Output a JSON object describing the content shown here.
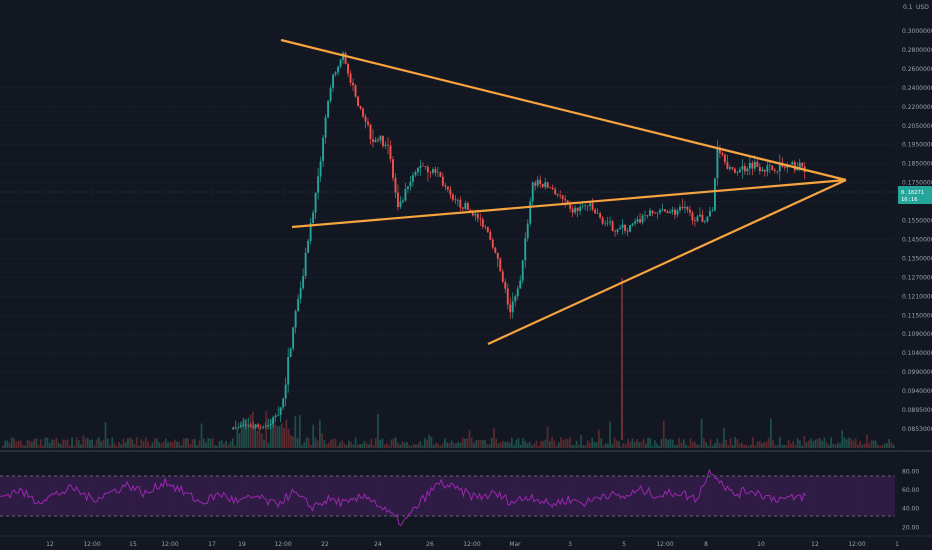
{
  "chart_data": {
    "type": "candlestick",
    "currency_label": "USD",
    "price_axis": {
      "top_label": "0.1",
      "ticks": [
        "0.30000000",
        "0.28000000",
        "0.26000000",
        "0.24000000",
        "0.22000000",
        "0.20500000",
        "0.19500000",
        "0.18500000",
        "0.17500000",
        "0.16500000",
        "0.15500000",
        "0.14500000",
        "0.13500000",
        "0.12700000",
        "0.12100000",
        "0.11500000",
        "0.10900000",
        "0.10400000",
        "0.09900000",
        "0.09400000",
        "0.08950000",
        "0.08530000"
      ],
      "current_price": "0.18271",
      "countdown": "16:16"
    },
    "rsi_axis": {
      "ticks": [
        "80.00",
        "60.00",
        "40.00",
        "20.00"
      ],
      "upper_band": 70,
      "lower_band": 30
    },
    "time_axis": [
      "12",
      "12:00",
      "15",
      "12:00",
      "17",
      "19",
      "12:00",
      "22",
      "24",
      "26",
      "12:00",
      "Mar",
      "3",
      "5",
      "12:00",
      "8",
      "10",
      "12",
      "12:00",
      "1"
    ],
    "price_range": [
      0.0835,
      0.312
    ],
    "rsi_range": [
      15,
      90
    ],
    "candle_count": 300,
    "path": [
      [
        0,
        0.0852
      ],
      [
        14,
        0.0852
      ],
      [
        20,
        0.092
      ],
      [
        28,
        0.13
      ],
      [
        34,
        0.175
      ],
      [
        40,
        0.25
      ],
      [
        44,
        0.275
      ],
      [
        49,
        0.23
      ],
      [
        55,
        0.2
      ],
      [
        62,
        0.195
      ],
      [
        66,
        0.16
      ],
      [
        70,
        0.172
      ],
      [
        75,
        0.185
      ],
      [
        82,
        0.18
      ],
      [
        88,
        0.165
      ],
      [
        95,
        0.16
      ],
      [
        102,
        0.15
      ],
      [
        108,
        0.125
      ],
      [
        111,
        0.116
      ],
      [
        115,
        0.125
      ],
      [
        120,
        0.175
      ],
      [
        128,
        0.172
      ],
      [
        135,
        0.16
      ],
      [
        142,
        0.163
      ],
      [
        150,
        0.152
      ],
      [
        158,
        0.15
      ],
      [
        165,
        0.158
      ],
      [
        172,
        0.16
      ],
      [
        180,
        0.16
      ],
      [
        188,
        0.155
      ],
      [
        192,
        0.16
      ],
      [
        194,
        0.195
      ],
      [
        200,
        0.18
      ],
      [
        208,
        0.185
      ],
      [
        215,
        0.182
      ],
      [
        220,
        0.183
      ],
      [
        228,
        0.183
      ]
    ],
    "rsi_path": [
      [
        0,
        52
      ],
      [
        5,
        60
      ],
      [
        10,
        48
      ],
      [
        15,
        55
      ],
      [
        20,
        62
      ],
      [
        25,
        50
      ],
      [
        30,
        57
      ],
      [
        35,
        66
      ],
      [
        40,
        55
      ],
      [
        45,
        70
      ],
      [
        50,
        58
      ],
      [
        55,
        46
      ],
      [
        60,
        56
      ],
      [
        65,
        47
      ],
      [
        70,
        53
      ],
      [
        75,
        44
      ],
      [
        80,
        57
      ],
      [
        85,
        42
      ],
      [
        90,
        50
      ],
      [
        95,
        45
      ],
      [
        100,
        55
      ],
      [
        105,
        38
      ],
      [
        110,
        24
      ],
      [
        115,
        48
      ],
      [
        120,
        68
      ],
      [
        125,
        60
      ],
      [
        130,
        52
      ],
      [
        135,
        56
      ],
      [
        140,
        47
      ],
      [
        145,
        54
      ],
      [
        150,
        44
      ],
      [
        155,
        50
      ],
      [
        160,
        46
      ],
      [
        165,
        56
      ],
      [
        170,
        52
      ],
      [
        175,
        60
      ],
      [
        180,
        54
      ],
      [
        185,
        58
      ],
      [
        190,
        50
      ],
      [
        194,
        82
      ],
      [
        200,
        55
      ],
      [
        205,
        60
      ],
      [
        210,
        52
      ],
      [
        215,
        50
      ],
      [
        220,
        54
      ]
    ],
    "candle_colors": {
      "up": "#26a69a",
      "down": "#ef5350"
    },
    "trendline_color": "#f7a440",
    "rsi_color": "#9c27b0",
    "rsi_band_fill": "#3a1f52",
    "price_badge_color": "#26a69a"
  }
}
